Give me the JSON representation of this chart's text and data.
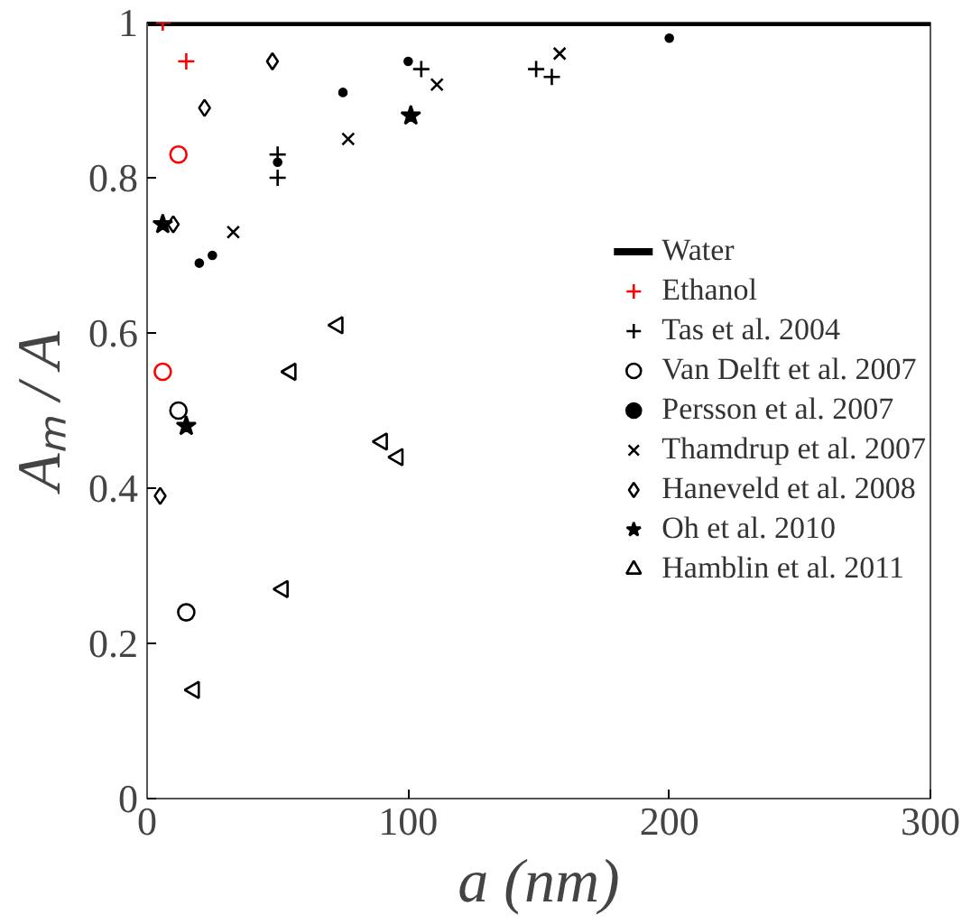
{
  "chart_data": {
    "type": "scatter",
    "xlabel": "a (nm)",
    "ylabel": "Aₘ / A",
    "xlim": [
      0,
      300
    ],
    "ylim": [
      0,
      1
    ],
    "xticks": [
      0,
      100,
      200,
      300
    ],
    "yticks": [
      0,
      0.2,
      0.4,
      0.6,
      0.8,
      1
    ],
    "grid": false,
    "legend": "right",
    "series": [
      {
        "name": "Water",
        "type": "line",
        "color": "#000000",
        "x": [
          0,
          300
        ],
        "values": [
          1,
          1
        ]
      },
      {
        "name": "Ethanol",
        "marker": "cross",
        "color": "#ff0000",
        "x": [
          6,
          15
        ],
        "values": [
          1.0,
          0.95
        ]
      },
      {
        "marker": "circle",
        "color": "#ff0000",
        "x": [
          6,
          12
        ],
        "values": [
          0.55,
          0.83
        ]
      },
      {
        "name": "Tas et al. 2004",
        "marker": "cross",
        "color": "#000000",
        "x": [
          50,
          50,
          105,
          149,
          155
        ],
        "values": [
          0.83,
          0.8,
          0.94,
          0.94,
          0.93
        ]
      },
      {
        "name": "Van Delft et al. 2007",
        "marker": "circle",
        "color": "#000000",
        "x": [
          12,
          15
        ],
        "values": [
          0.5,
          0.24
        ]
      },
      {
        "name": "Persson et al. 2007",
        "marker": "dot",
        "color": "#000000",
        "x": [
          20,
          25,
          50,
          75,
          100,
          200
        ],
        "values": [
          0.69,
          0.7,
          0.82,
          0.91,
          0.95,
          0.98
        ]
      },
      {
        "name": "Thamdrup et al. 2007",
        "marker": "x",
        "color": "#000000",
        "x": [
          33,
          77,
          111,
          158
        ],
        "values": [
          0.73,
          0.85,
          0.92,
          0.96
        ]
      },
      {
        "name": "Haneveld et al. 2008",
        "marker": "diamond",
        "color": "#000000",
        "x": [
          5,
          10,
          22,
          48
        ],
        "values": [
          0.39,
          0.74,
          0.89,
          0.95
        ]
      },
      {
        "name": "Oh et al. 2010",
        "marker": "star",
        "color": "#000000",
        "x": [
          6,
          15,
          101
        ],
        "values": [
          0.74,
          0.48,
          0.88
        ]
      },
      {
        "name": "Hamblin et al. 2011",
        "marker": "triangle",
        "color": "#000000",
        "x": [
          18,
          52,
          55,
          73,
          90,
          96
        ],
        "values": [
          0.14,
          0.27,
          0.55,
          0.61,
          0.46,
          0.44
        ]
      }
    ]
  }
}
